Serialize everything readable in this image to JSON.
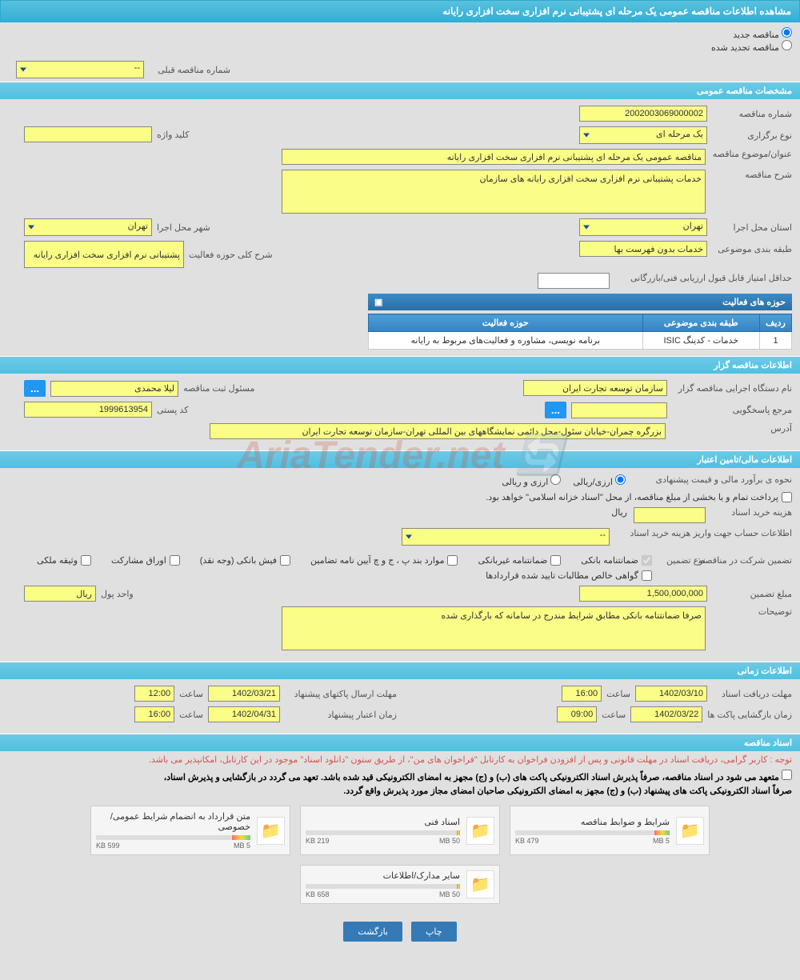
{
  "page_title": "مشاهده اطلاعات مناقصه عمومی یک مرحله ای پشتیبانی نرم افزاری سخت افزاری رایانه",
  "radios": {
    "new_tender": "مناقصه جدید",
    "renewed_tender": "مناقصه تجدید شده"
  },
  "prev_tender": {
    "label": "شماره مناقصه قبلی",
    "value": "--"
  },
  "sections": {
    "general": "مشخصات مناقصه عمومی",
    "organizer": "اطلاعات مناقصه گزار",
    "financial": "اطلاعات مالی/تامین اعتبار",
    "timing": "اطلاعات زمانی",
    "documents": "اسناد مناقصه"
  },
  "general": {
    "tender_no_label": "شماره مناقصه",
    "tender_no": "2002003069000002",
    "type_label": "نوع برگزاری",
    "type": "یک مرحله ای",
    "keyword_label": "کلید واژه",
    "keyword": "",
    "subject_label": "عنوان/موضوع مناقصه",
    "subject": "مناقصه عمومی یک مرحله ای پشتیبانی نرم افزاری سخت افزاری رایانه",
    "desc_label": "شرح مناقصه",
    "desc": "خدمات پشتیبانی نرم افزاری سخت افزاری رایانه های سازمان",
    "province_label": "استان محل اجرا",
    "province": "تهران",
    "city_label": "شهر محل اجرا",
    "city": "تهران",
    "category_label": "طبقه بندی موضوعی",
    "category": "خدمات بدون فهرست بها",
    "activity_scope_label": "شرح کلی حوزه فعالیت",
    "activity_scope": "پشتیبانی نرم افزاری سخت افزاری رایانه",
    "min_score_label": "حداقل امتیاز قابل قبول ارزیابی فنی/بازرگانی",
    "min_score": ""
  },
  "activity_table": {
    "title": "حوزه های فعالیت",
    "col_row": "ردیف",
    "col_category": "طبقه بندی موضوعی",
    "col_scope": "حوزه فعالیت",
    "rows": [
      {
        "n": "1",
        "category": "خدمات - کدینگ ISIC",
        "scope": "برنامه نویسی، مشاوره و فعالیت‌های مربوط به رایانه"
      }
    ]
  },
  "organizer": {
    "org_label": "نام دستگاه اجرایی مناقصه گزار",
    "org": "سازمان توسعه تجارت ایران",
    "reg_label": "مسئول ثبت مناقصه",
    "reg": "لیلا محمدی",
    "contact_label": "مرجع پاسخگویی",
    "contact": "",
    "postal_label": "کد پستی",
    "postal": "1999613954",
    "address_label": "آدرس",
    "address": "بزرگره چمران-خیابان سئول-محل دائمی نمایشگاههای بین المللی تهران-سازمان توسعه تجارت ایران"
  },
  "financial": {
    "estimate_label": "نحوه ی برآورد مالی و قیمت پیشنهادی",
    "fx_option": "ارزی/ریالی",
    "rial_option": "ارزی و ریالی",
    "treasury_note": "پرداخت تمام و یا بخشی از مبلغ مناقصه، از محل \"اسناد خزانه اسلامی\" خواهد بود.",
    "doc_cost_label": "هزینه خرید اسناد",
    "doc_cost": "",
    "doc_cost_unit": "ریال",
    "account_label": "اطلاعات حساب جهت واریز هزینه خرید اسناد",
    "account": "--",
    "guarantee_label": "تضمین شرکت در مناقصه:",
    "guarantee_type_label": "نوع تضمین",
    "gt_bank": "ضمانتنامه بانکی",
    "gt_nonbank": "ضمانتنامه غیربانکی",
    "gt_clauses": "موارد بند پ ، ج و چ آیین نامه تضامین",
    "gt_cash": "فیش بانکی (وجه نقد)",
    "gt_bonds": "اوراق مشارکت",
    "gt_property": "وثیقه ملکی",
    "gt_cert": "گواهی خالص مطالبات تایید شده قراردادها",
    "amount_label": "مبلغ تضمین",
    "amount": "1,500,000,000",
    "unit_label": "واحد پول",
    "unit": "ریال",
    "notes_label": "توضیحات",
    "notes": "صرفا ضمانتنامه بانکی مطابق شرایط مندرج در سامانه که بارگذاری شده"
  },
  "timing": {
    "receive_label": "مهلت دریافت اسناد",
    "receive_date": "1402/03/10",
    "receive_time": "16:00",
    "time_label": "ساعت",
    "submit_label": "مهلت ارسال پاکتهای پیشنهاد",
    "submit_date": "1402/03/21",
    "submit_time": "12:00",
    "open_label": "زمان بازگشایی پاکت ها",
    "open_date": "1402/03/22",
    "open_time": "09:00",
    "validity_label": "زمان اعتبار پیشنهاد",
    "validity_date": "1402/04/31",
    "validity_time": "16:00"
  },
  "notices": {
    "n1": "توجه : کاربر گرامی، دریافت اسناد در مهلت قانونی و پس از افزودن فراخوان به کارتابل \"فراخوان های من\"، از طریق ستون \"دانلود اسناد\" موجود در این کارتابل، امکانپذیر می باشد.",
    "n2": "متعهد می شود در اسناد مناقصه، صرفاً پذیرش اسناد الکترونیکی پاکت های (ب) و (ج) مجهز به امضای الکترونیکی قید شده باشد. تعهد می گردد در بازگشایی و پذیرش اسناد،",
    "n3": "صرفاً اسناد الکترونیکی پاکت های پیشنهاد (ب) و (ج) مجهز به امضای الکترونیکی صاحبان امضای مجاز مورد پذیرش واقع گردد."
  },
  "files": [
    {
      "title": "شرایط و ضوابط مناقصه",
      "used": "479 KB",
      "total": "5 MB",
      "pct": 10
    },
    {
      "title": "اسناد فنی",
      "used": "219 KB",
      "total": "50 MB",
      "pct": 2
    },
    {
      "title": "متن قرارداد به انضمام شرایط عمومی/خصوصی",
      "used": "599 KB",
      "total": "5 MB",
      "pct": 12
    },
    {
      "title": "سایر مدارک/اطلاعات",
      "used": "658 KB",
      "total": "50 MB",
      "pct": 2
    }
  ],
  "buttons": {
    "print": "چاپ",
    "back": "بازگشت",
    "dots": "..."
  },
  "colors": {
    "header_bg": "#5bc0de",
    "field_bg": "#fafd86",
    "btn_primary": "#337ab7",
    "btn_dots": "#2196F3",
    "notice_red": "#d9534f"
  }
}
